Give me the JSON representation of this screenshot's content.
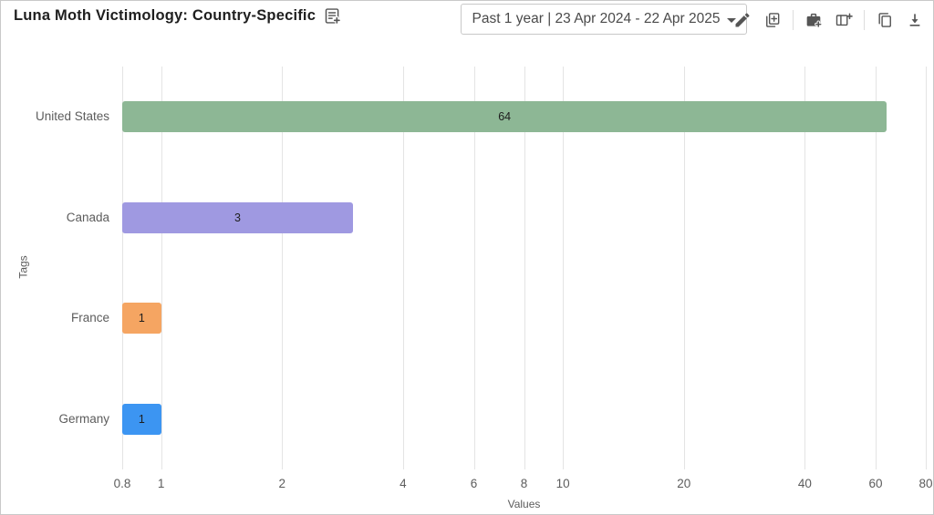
{
  "header": {
    "title": "Luna Moth Victimology: Country-Specific",
    "title_icon": "note-add-icon",
    "date_range": {
      "label": "Past 1 year | 23 Apr 2024 - 22 Apr 2025"
    },
    "toolbar_icons": [
      "edit-icon",
      "duplicate-add-icon",
      "case-add-icon",
      "dashboard-add-icon",
      "copy-icon",
      "download-icon"
    ]
  },
  "chart_data": {
    "type": "bar",
    "orientation": "horizontal",
    "title": "Luna Moth Victimology: Country-Specific",
    "categories": [
      "United States",
      "Canada",
      "France",
      "Germany"
    ],
    "values": [
      64,
      3,
      1,
      1
    ],
    "value_labels": [
      "64",
      "3",
      "1",
      "1"
    ],
    "bar_colors": [
      "#8db795",
      "#9f99e1",
      "#f5a562",
      "#3c95f2"
    ],
    "xlabel": "Values",
    "ylabel": "Tags",
    "x_scale": "log",
    "xlim": [
      0.8,
      80
    ],
    "xticks": [
      0.8,
      1,
      2,
      4,
      6,
      8,
      10,
      20,
      40,
      60,
      80
    ],
    "xtick_labels": [
      "0.8",
      "1",
      "2",
      "4",
      "6",
      "8",
      "10",
      "20",
      "40",
      "60",
      "80"
    ],
    "grid": true,
    "legend": false
  },
  "colors": {
    "bar_green": "#8db795",
    "bar_purple": "#9f99e1",
    "bar_orange": "#f5a562",
    "bar_blue": "#3c95f2",
    "gridline": "#e4e4e4",
    "card_border": "#c9c9c9",
    "text_primary": "#1f1f1f",
    "text_secondary": "#5c5c5c",
    "icon": "#555555"
  }
}
